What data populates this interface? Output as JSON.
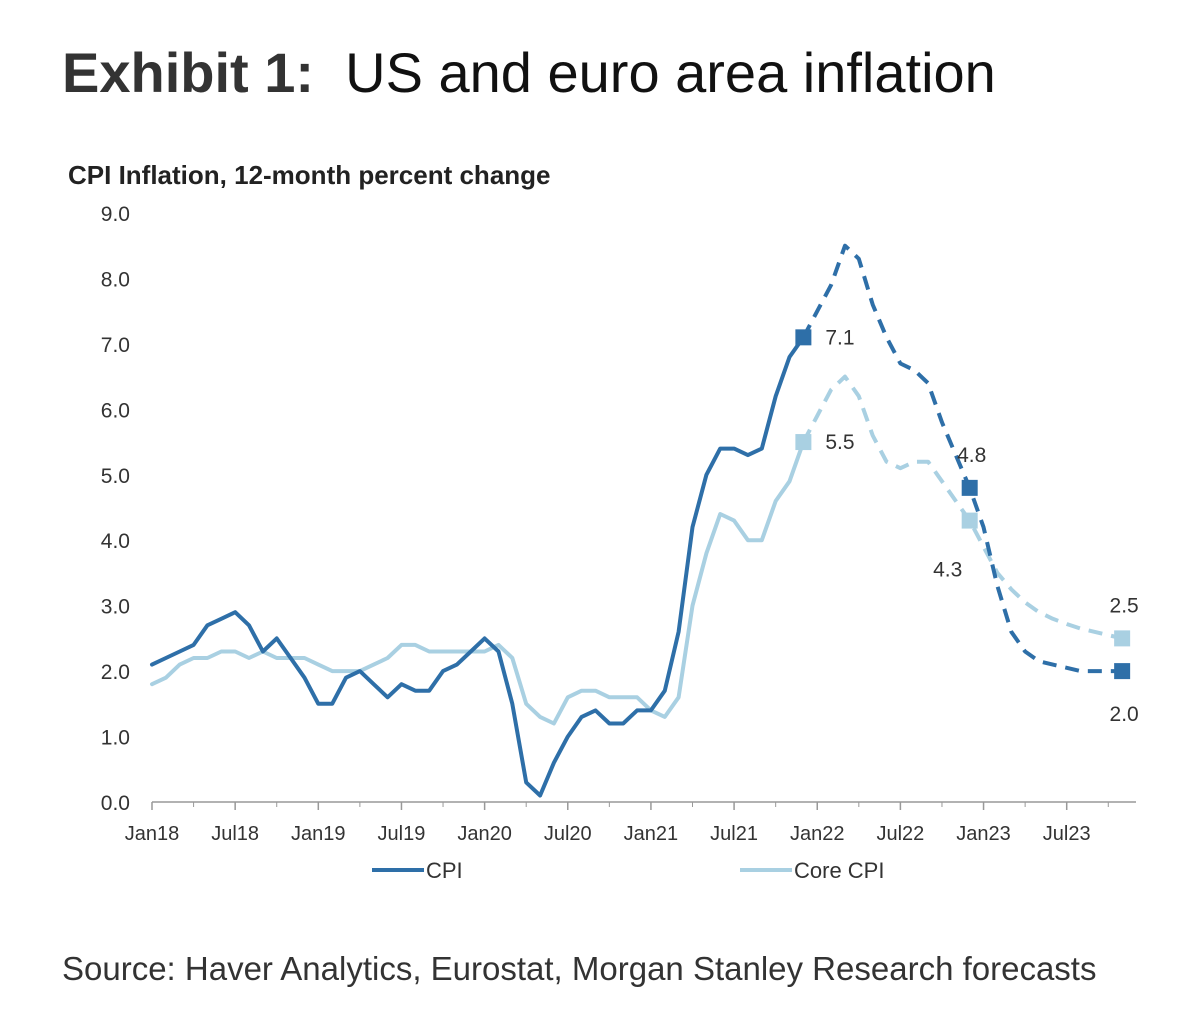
{
  "exhibit": {
    "label": "Exhibit 1:",
    "title": "US and euro area inflation"
  },
  "source": "Source: Haver Analytics, Eurostat, Morgan Stanley Research forecasts",
  "chart_data": {
    "type": "line",
    "title": "CPI Inflation, 12-month percent change",
    "xlabel": "",
    "ylabel": "",
    "ylim": [
      0,
      9
    ],
    "y_ticks": [
      "0.0",
      "1.0",
      "2.0",
      "3.0",
      "4.0",
      "5.0",
      "6.0",
      "7.0",
      "8.0",
      "9.0"
    ],
    "x_range_months": [
      0,
      71
    ],
    "x_ticks": [
      {
        "label": "Jan18",
        "month": 0
      },
      {
        "label": "Jul18",
        "month": 6
      },
      {
        "label": "Jan19",
        "month": 12
      },
      {
        "label": "Jul19",
        "month": 18
      },
      {
        "label": "Jan20",
        "month": 24
      },
      {
        "label": "Jul20",
        "month": 30
      },
      {
        "label": "Jan21",
        "month": 36
      },
      {
        "label": "Jul21",
        "month": 42
      },
      {
        "label": "Jan22",
        "month": 48
      },
      {
        "label": "Jul22",
        "month": 54
      },
      {
        "label": "Jan23",
        "month": 60
      },
      {
        "label": "Jul23",
        "month": 66
      }
    ],
    "legend_position": "bottom",
    "colors": {
      "cpi": "#2e6fa8",
      "core": "#a9d0e2",
      "axis": "#999999",
      "label": "#333333"
    },
    "series": [
      {
        "name": "CPI",
        "key": "cpi",
        "actual": [
          [
            0,
            2.1
          ],
          [
            1,
            2.2
          ],
          [
            2,
            2.3
          ],
          [
            3,
            2.4
          ],
          [
            4,
            2.7
          ],
          [
            5,
            2.8
          ],
          [
            6,
            2.9
          ],
          [
            7,
            2.7
          ],
          [
            8,
            2.3
          ],
          [
            9,
            2.5
          ],
          [
            10,
            2.2
          ],
          [
            11,
            1.9
          ],
          [
            12,
            1.5
          ],
          [
            13,
            1.5
          ],
          [
            14,
            1.9
          ],
          [
            15,
            2.0
          ],
          [
            16,
            1.8
          ],
          [
            17,
            1.6
          ],
          [
            18,
            1.8
          ],
          [
            19,
            1.7
          ],
          [
            20,
            1.7
          ],
          [
            21,
            2.0
          ],
          [
            22,
            2.1
          ],
          [
            23,
            2.3
          ],
          [
            24,
            2.5
          ],
          [
            25,
            2.3
          ],
          [
            26,
            1.5
          ],
          [
            27,
            0.3
          ],
          [
            28,
            0.1
          ],
          [
            29,
            0.6
          ],
          [
            30,
            1.0
          ],
          [
            31,
            1.3
          ],
          [
            32,
            1.4
          ],
          [
            33,
            1.2
          ],
          [
            34,
            1.2
          ],
          [
            35,
            1.4
          ],
          [
            36,
            1.4
          ],
          [
            37,
            1.7
          ],
          [
            38,
            2.6
          ],
          [
            39,
            4.2
          ],
          [
            40,
            5.0
          ],
          [
            41,
            5.4
          ],
          [
            42,
            5.4
          ],
          [
            43,
            5.3
          ],
          [
            44,
            5.4
          ],
          [
            45,
            6.2
          ],
          [
            46,
            6.8
          ],
          [
            47,
            7.1
          ]
        ],
        "forecast": [
          [
            47,
            7.1
          ],
          [
            48,
            7.5
          ],
          [
            49,
            7.9
          ],
          [
            50,
            8.5
          ],
          [
            51,
            8.3
          ],
          [
            52,
            7.6
          ],
          [
            53,
            7.1
          ],
          [
            54,
            6.7
          ],
          [
            55,
            6.6
          ],
          [
            56,
            6.4
          ],
          [
            57,
            5.8
          ],
          [
            58,
            5.3
          ],
          [
            59,
            4.8
          ],
          [
            60,
            4.2
          ],
          [
            61,
            3.3
          ],
          [
            62,
            2.6
          ],
          [
            63,
            2.3
          ],
          [
            64,
            2.15
          ],
          [
            65,
            2.1
          ],
          [
            66,
            2.05
          ],
          [
            67,
            2.0
          ],
          [
            68,
            2.0
          ],
          [
            69,
            2.0
          ],
          [
            70,
            2.0
          ]
        ],
        "markers": [
          {
            "month": 47,
            "value": 7.1,
            "label": "7.1",
            "label_pos": "right"
          },
          {
            "month": 59,
            "value": 4.8,
            "label": "4.8",
            "label_pos": "above"
          },
          {
            "month": 70,
            "value": 2.0,
            "label": "2.0",
            "label_pos": "below"
          }
        ]
      },
      {
        "name": "Core CPI",
        "key": "core",
        "actual": [
          [
            0,
            1.8
          ],
          [
            1,
            1.9
          ],
          [
            2,
            2.1
          ],
          [
            3,
            2.2
          ],
          [
            4,
            2.2
          ],
          [
            5,
            2.3
          ],
          [
            6,
            2.3
          ],
          [
            7,
            2.2
          ],
          [
            8,
            2.3
          ],
          [
            9,
            2.2
          ],
          [
            10,
            2.2
          ],
          [
            11,
            2.2
          ],
          [
            12,
            2.1
          ],
          [
            13,
            2.0
          ],
          [
            14,
            2.0
          ],
          [
            15,
            2.0
          ],
          [
            16,
            2.1
          ],
          [
            17,
            2.2
          ],
          [
            18,
            2.4
          ],
          [
            19,
            2.4
          ],
          [
            20,
            2.3
          ],
          [
            21,
            2.3
          ],
          [
            22,
            2.3
          ],
          [
            23,
            2.3
          ],
          [
            24,
            2.3
          ],
          [
            25,
            2.4
          ],
          [
            26,
            2.2
          ],
          [
            27,
            1.5
          ],
          [
            28,
            1.3
          ],
          [
            29,
            1.2
          ],
          [
            30,
            1.6
          ],
          [
            31,
            1.7
          ],
          [
            32,
            1.7
          ],
          [
            33,
            1.6
          ],
          [
            34,
            1.6
          ],
          [
            35,
            1.6
          ],
          [
            36,
            1.4
          ],
          [
            37,
            1.3
          ],
          [
            38,
            1.6
          ],
          [
            39,
            3.0
          ],
          [
            40,
            3.8
          ],
          [
            41,
            4.4
          ],
          [
            42,
            4.3
          ],
          [
            43,
            4.0
          ],
          [
            44,
            4.0
          ],
          [
            45,
            4.6
          ],
          [
            46,
            4.9
          ],
          [
            47,
            5.5
          ]
        ],
        "forecast": [
          [
            47,
            5.5
          ],
          [
            48,
            5.9
          ],
          [
            49,
            6.3
          ],
          [
            50,
            6.5
          ],
          [
            51,
            6.2
          ],
          [
            52,
            5.6
          ],
          [
            53,
            5.2
          ],
          [
            54,
            5.1
          ],
          [
            55,
            5.2
          ],
          [
            56,
            5.2
          ],
          [
            57,
            4.9
          ],
          [
            58,
            4.6
          ],
          [
            59,
            4.3
          ],
          [
            60,
            3.9
          ],
          [
            61,
            3.5
          ],
          [
            62,
            3.25
          ],
          [
            63,
            3.05
          ],
          [
            64,
            2.9
          ],
          [
            65,
            2.8
          ],
          [
            66,
            2.72
          ],
          [
            67,
            2.65
          ],
          [
            68,
            2.6
          ],
          [
            69,
            2.55
          ],
          [
            70,
            2.5
          ]
        ],
        "markers": [
          {
            "month": 47,
            "value": 5.5,
            "label": "5.5",
            "label_pos": "right"
          },
          {
            "month": 59,
            "value": 4.3,
            "label": "4.3",
            "label_pos": "below-left"
          },
          {
            "month": 70,
            "value": 2.5,
            "label": "2.5",
            "label_pos": "above"
          }
        ]
      }
    ]
  }
}
